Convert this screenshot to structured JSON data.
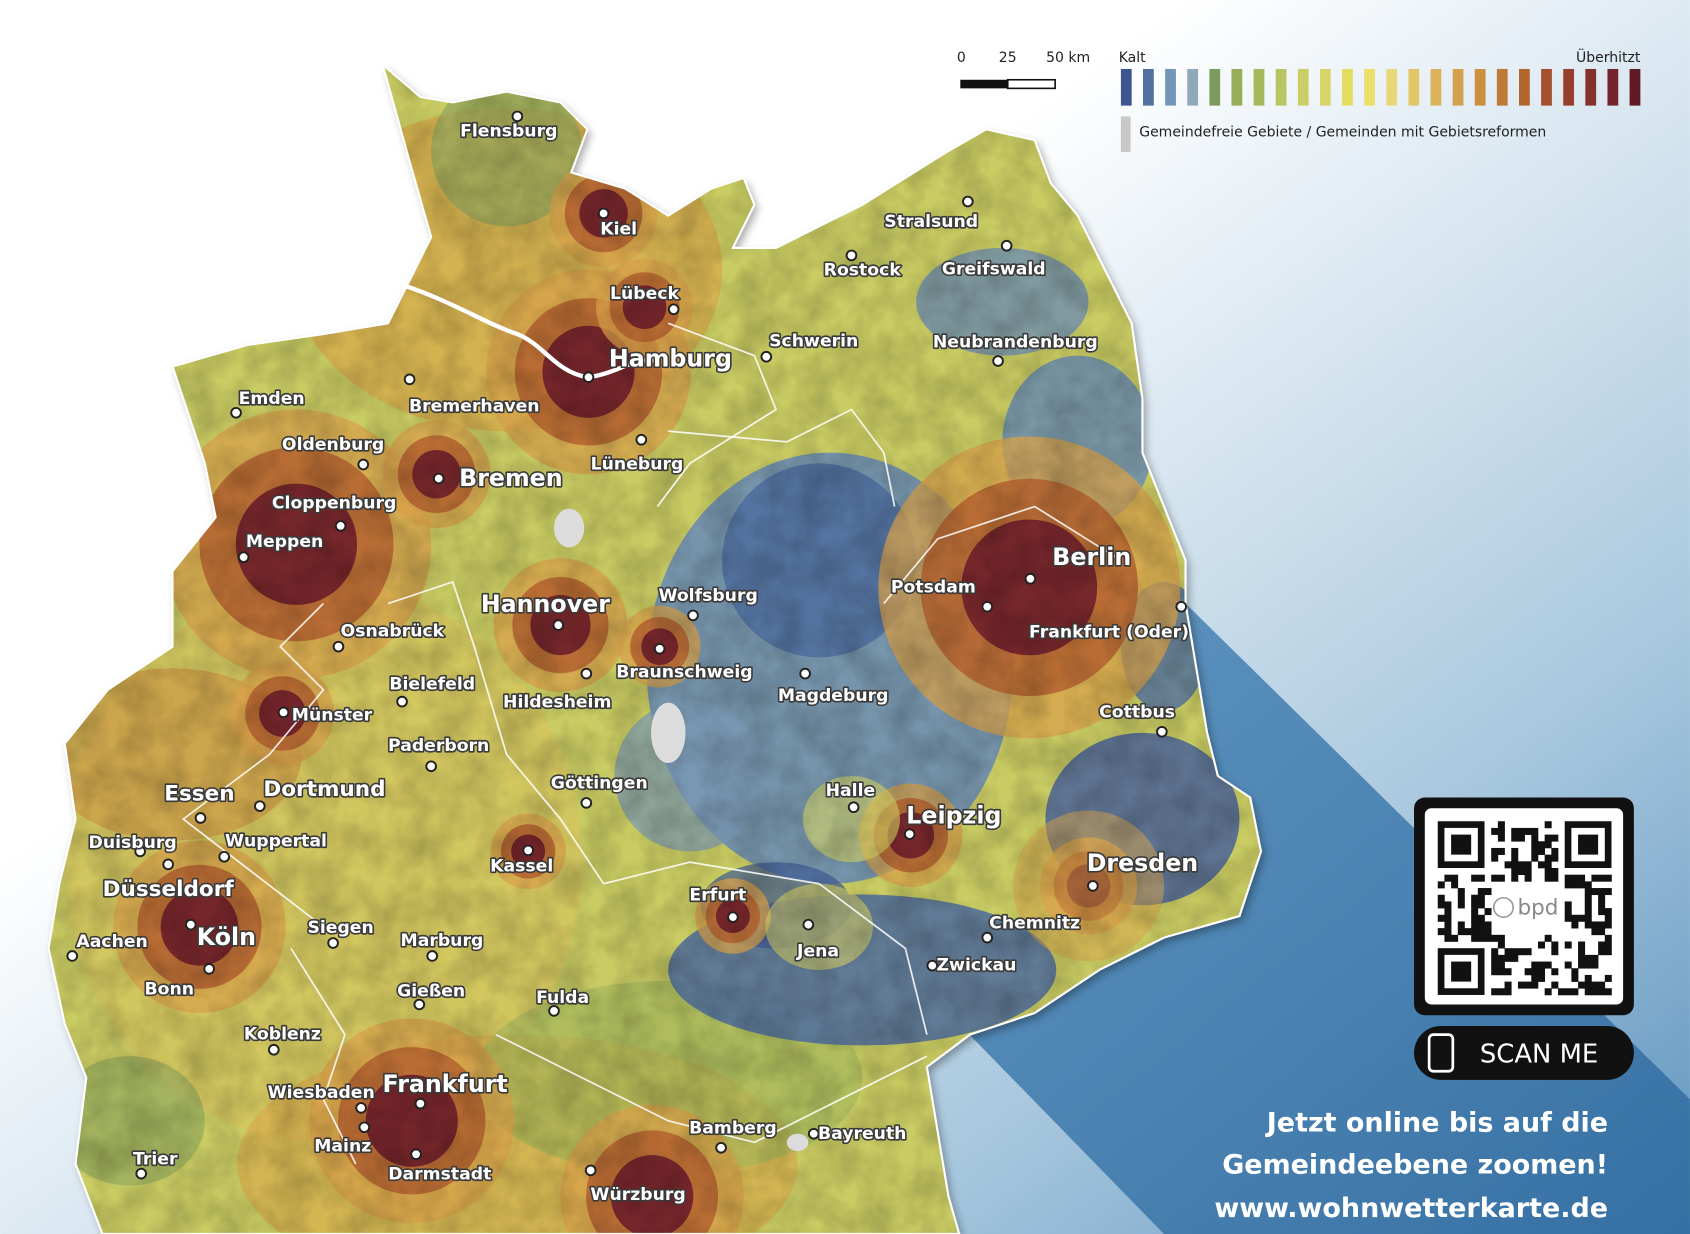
{
  "scale_bar": {
    "labels": [
      "0",
      "25",
      "50 km"
    ]
  },
  "legend": {
    "min_label": "Kalt",
    "max_label": "Überhitzt",
    "colors": [
      "#3c5590",
      "#52709e",
      "#7396b8",
      "#90a9b8",
      "#7c9c5e",
      "#97ad5a",
      "#a6b85c",
      "#b9c562",
      "#c9cf66",
      "#d7d569",
      "#e4dc5f",
      "#eadf6a",
      "#e8d77a",
      "#e2c66a",
      "#dbb35a",
      "#d4a24c",
      "#cc8e41",
      "#c07a38",
      "#b3652f",
      "#a5502c",
      "#963f2d",
      "#85302d",
      "#74232c",
      "#5f1a26"
    ],
    "note_color": "#c8c8c8",
    "note": "Gemeindefreie Gebiete / Gemeinden mit Gebietsreformen"
  },
  "cities": [
    "Flensburg",
    "Kiel",
    "Lübeck",
    "Hamburg",
    "Stralsund",
    "Rostock",
    "Greifswald",
    "Schwerin",
    "Neubrandenburg",
    "Emden",
    "Bremerhaven",
    "Oldenburg",
    "Bremen",
    "Lüneburg",
    "Cloppenburg",
    "Meppen",
    "Berlin",
    "Potsdam",
    "Frankfurt (Oder)",
    "Hannover",
    "Wolfsburg",
    "Osnabrück",
    "Braunschweig",
    "Bielefeld",
    "Hildesheim",
    "Magdeburg",
    "Münster",
    "Cottbus",
    "Paderborn",
    "Essen",
    "Dortmund",
    "Göttingen",
    "Halle",
    "Leipzig",
    "Duisburg",
    "Wuppertal",
    "Kassel",
    "Dresden",
    "Düsseldorf",
    "Köln",
    "Bonn",
    "Erfurt",
    "Jena",
    "Chemnitz",
    "Aachen",
    "Siegen",
    "Marburg",
    "Zwickau",
    "Gießen",
    "Fulda",
    "Koblenz",
    "Wiesbaden",
    "Frankfurt",
    "Mainz",
    "Darmstadt",
    "Bamberg",
    "Bayreuth",
    "Trier",
    "Würzburg"
  ],
  "qr": {
    "logo": "bpd",
    "button": "SCAN ME"
  },
  "promo": [
    "Jetzt online bis auf die",
    "Gemeindeebene zoomen!",
    "www.wohnwetterkarte.de"
  ]
}
